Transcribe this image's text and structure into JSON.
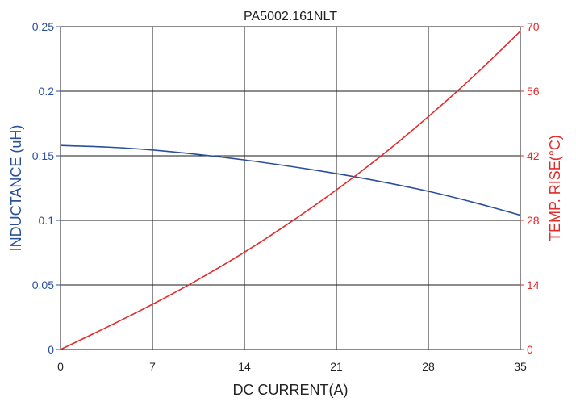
{
  "chart_data": {
    "type": "line",
    "title": "PA5002.161NLT",
    "xlabel": "DC CURRENT(A)",
    "ylabel_left": "INDUCTANCE (uH)",
    "ylabel_right": "TEMP. RISE(°C)",
    "xlim": [
      0,
      35
    ],
    "ylim_left": [
      0,
      0.25
    ],
    "ylim_right": [
      0,
      70
    ],
    "x_ticks": [
      "0",
      "7",
      "14",
      "21",
      "28",
      "35"
    ],
    "y_left_ticks": [
      "0",
      "0.05",
      "0.1",
      "0.15",
      "0.2",
      "0.25"
    ],
    "y_right_ticks": [
      "0",
      "14",
      "28",
      "42",
      "56",
      "70"
    ],
    "grid": true,
    "colors": {
      "inductance": "#2a4f9c",
      "temp_rise": "#e32b2b",
      "grid": "#1a1a1a",
      "text": "#222222"
    },
    "series": [
      {
        "axis": "left",
        "color": "#2a4f9c",
        "x": [
          0,
          3.5,
          7,
          10.5,
          14,
          17.5,
          21,
          24.5,
          28,
          31.5,
          35
        ],
        "y": [
          0.158,
          0.1568,
          0.1545,
          0.151,
          0.1468,
          0.1418,
          0.1362,
          0.1298,
          0.1225,
          0.1138,
          0.104
        ]
      },
      {
        "axis": "right",
        "color": "#e32b2b",
        "x": [
          0,
          3.5,
          7,
          10.5,
          14,
          17.5,
          21,
          24.5,
          28,
          31.5,
          35
        ],
        "y": [
          0,
          4.8,
          9.8,
          15.2,
          21.1,
          27.6,
          34.6,
          42.2,
          50.5,
          59.4,
          69
        ]
      }
    ]
  }
}
